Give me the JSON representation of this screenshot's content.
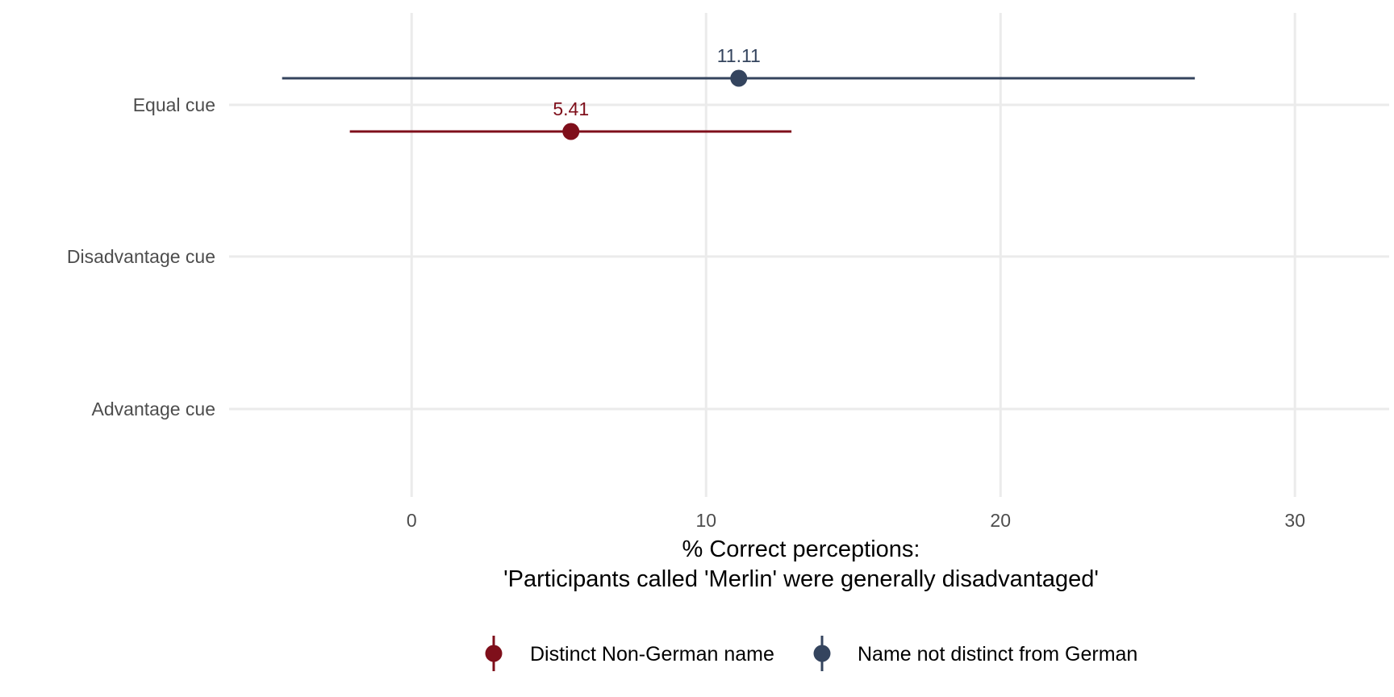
{
  "chart_data": {
    "type": "point-range",
    "xlabel_line1": "% Correct perceptions:",
    "xlabel_line2": "'Participants called 'Merlin' were generally disadvantaged'",
    "ylabel": "",
    "xlim": [
      -6.2,
      33.2
    ],
    "x_ticks": [
      0,
      10,
      20,
      30
    ],
    "categories": [
      "Equal cue",
      "Disadvantage cue",
      "Advantage cue"
    ],
    "grid": true,
    "legend_position": "bottom",
    "series": [
      {
        "name": "Name not distinct from German",
        "color": "#34445e",
        "points": [
          {
            "category": "Equal cue",
            "value": 11.11,
            "lower": -4.4,
            "upper": 26.6,
            "label": "11.11"
          }
        ]
      },
      {
        "name": "Distinct Non-German name",
        "color": "#7f0f1b",
        "points": [
          {
            "category": "Equal cue",
            "value": 5.41,
            "lower": -2.1,
            "upper": 12.9,
            "label": "5.41"
          }
        ]
      }
    ],
    "legend": [
      {
        "name": "Distinct Non-German name",
        "color": "#7f0f1b"
      },
      {
        "name": "Name not distinct from German",
        "color": "#34445e"
      }
    ]
  }
}
